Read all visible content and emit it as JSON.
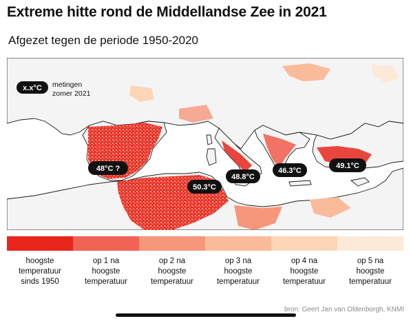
{
  "header": {
    "title": "Extreme hitte rond de Middellandse Zee in 2021",
    "subtitle": "Afgezet tegen de periode 1950-2020"
  },
  "map": {
    "key": {
      "badge": "x.x°C",
      "line1": "metingen",
      "line2": "zomer 2021"
    },
    "labels": [
      {
        "id": "spain",
        "text": "48°C ?"
      },
      {
        "id": "tunisia",
        "text": "50.3°C"
      },
      {
        "id": "sicily",
        "text": "48.8°C"
      },
      {
        "id": "greece",
        "text": "46.3°C"
      },
      {
        "id": "turkey",
        "text": "49.1°C"
      }
    ],
    "colors": {
      "sea": "#ffffff",
      "land": "#f4f4f4",
      "coast": "#1a1a1a",
      "label_bg": "#111111"
    }
  },
  "legend": {
    "items": [
      {
        "color": "#e8261c",
        "lines": [
          "hoogste",
          "temperatuur",
          "sinds 1950"
        ]
      },
      {
        "color": "#f26455",
        "lines": [
          "op 1 na",
          "hoogste",
          "temperatuur"
        ]
      },
      {
        "color": "#f6977c",
        "lines": [
          "op 2 na",
          "hoogste",
          "temperatuur"
        ]
      },
      {
        "color": "#fabb9a",
        "lines": [
          "op 3 na",
          "hoogste",
          "temperatuur"
        ]
      },
      {
        "color": "#fbd5b6",
        "lines": [
          "op 4 na",
          "hoogste",
          "temperatuur"
        ]
      },
      {
        "color": "#fde9d7",
        "lines": [
          "op 5 na",
          "hoogste",
          "temperatuur"
        ]
      }
    ]
  },
  "footer": {
    "source": "bron: Geert Jan van Oldenborgh, KNMI"
  }
}
